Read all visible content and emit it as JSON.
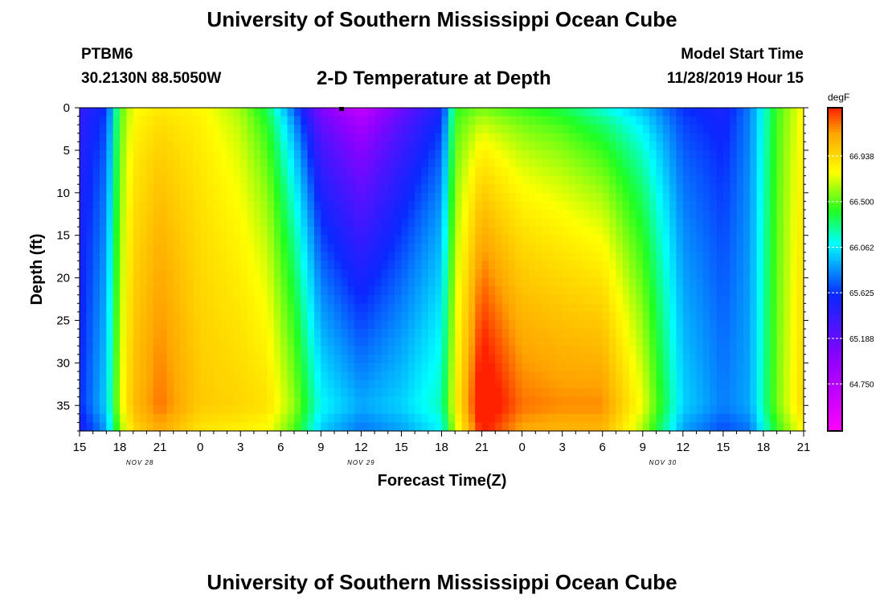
{
  "page": {
    "title_top": "University of Southern Mississippi Ocean Cube",
    "title_bottom": "University of Southern Mississippi Ocean Cube",
    "station": "PTBM6",
    "coords": "30.2130N 88.5050W",
    "plot_title": "2-D Temperature at Depth",
    "start_label": "Model Start Time",
    "start_value": "11/28/2019 Hour 15"
  },
  "chart_data": {
    "type": "heatmap",
    "title": "2-D Temperature at Depth",
    "xlabel": "Forecast Time(Z)",
    "ylabel": "Depth (ft)",
    "colorbar_unit": "degF",
    "x_tick_labels": [
      "15",
      "18",
      "21",
      "0",
      "3",
      "6",
      "9",
      "12",
      "15",
      "18",
      "21",
      "0",
      "3",
      "6",
      "9",
      "12",
      "15",
      "18",
      "21"
    ],
    "x_range_hours": [
      0,
      54
    ],
    "date_labels": [
      {
        "label": "NOV 28",
        "hour": 4.5
      },
      {
        "label": "NOV 29",
        "hour": 21
      },
      {
        "label": "NOV 30",
        "hour": 43.5
      }
    ],
    "y_ticks": [
      0,
      5,
      10,
      15,
      20,
      25,
      30,
      35
    ],
    "y_range": [
      0,
      38
    ],
    "y_inverted": true,
    "colorbar_labels": [
      "64.750",
      "65.188",
      "65.625",
      "66.062",
      "66.500",
      "66.938"
    ],
    "colorbar_range": [
      64.3,
      67.4
    ],
    "colors": {
      "magenta": "#ff00ff",
      "violet": "#9000ff",
      "blue": "#0a28ff",
      "cyan": "#00ffff",
      "green": "#20ff20",
      "yellow": "#ffff00",
      "orange": "#ffa500",
      "red": "#ff2000"
    },
    "hour_profiles": [
      {
        "hour": 0,
        "z0": 65.4,
        "z35": 65.6
      },
      {
        "hour": 2,
        "z0": 65.6,
        "z35": 66.0
      },
      {
        "hour": 3,
        "z0": 66.45,
        "z35": 66.7
      },
      {
        "hour": 4,
        "z0": 66.75,
        "z35": 67.05
      },
      {
        "hour": 6,
        "z0": 66.85,
        "z35": 67.25
      },
      {
        "hour": 9,
        "z0": 66.8,
        "z35": 67.0
      },
      {
        "hour": 12,
        "z0": 66.6,
        "z35": 66.95
      },
      {
        "hour": 14,
        "z0": 66.3,
        "z35": 66.9
      },
      {
        "hour": 16,
        "z0": 65.7,
        "z35": 66.6
      },
      {
        "hour": 18,
        "z0": 65.0,
        "z35": 66.1
      },
      {
        "hour": 21,
        "z0": 64.6,
        "z35": 65.9
      },
      {
        "hour": 24,
        "z0": 65.1,
        "z35": 66.0
      },
      {
        "hour": 27,
        "z0": 65.5,
        "z35": 66.2
      },
      {
        "hour": 28,
        "z0": 66.4,
        "z35": 66.8
      },
      {
        "hour": 30,
        "z0": 66.5,
        "z35": 67.55
      },
      {
        "hour": 33,
        "z0": 66.4,
        "z35": 67.25
      },
      {
        "hour": 36,
        "z0": 66.3,
        "z35": 67.2
      },
      {
        "hour": 39,
        "z0": 66.1,
        "z35": 67.2
      },
      {
        "hour": 42,
        "z0": 65.9,
        "z35": 66.75
      },
      {
        "hour": 45,
        "z0": 65.6,
        "z35": 66.0
      },
      {
        "hour": 48,
        "z0": 65.5,
        "z35": 65.8
      },
      {
        "hour": 50,
        "z0": 65.8,
        "z35": 65.9
      },
      {
        "hour": 52,
        "z0": 66.45,
        "z35": 66.55
      },
      {
        "hour": 54,
        "z0": 66.8,
        "z35": 66.95
      }
    ]
  }
}
